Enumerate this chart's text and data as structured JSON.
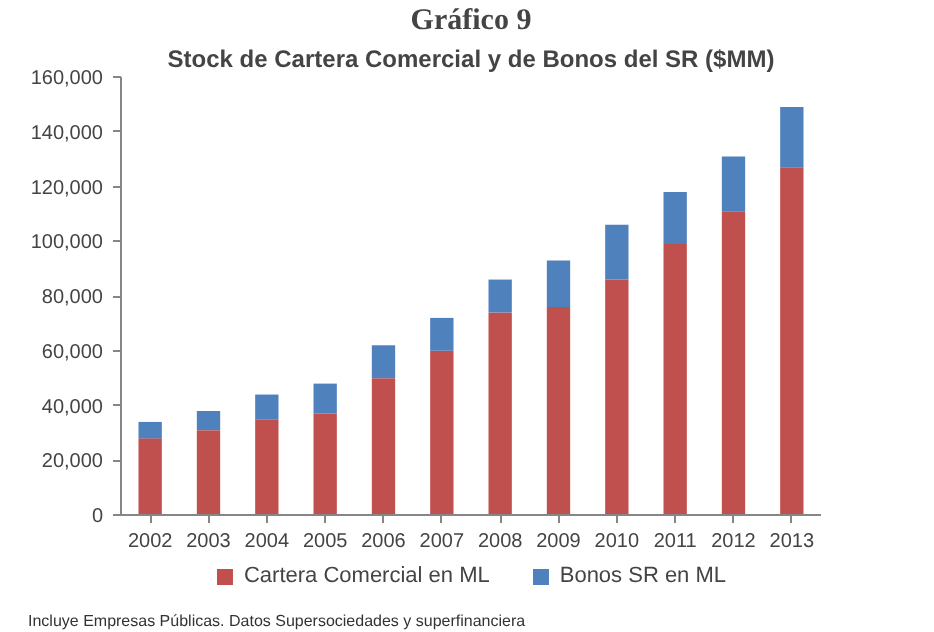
{
  "chart_data": {
    "type": "bar",
    "title": "Gráfico 9",
    "subtitle": "Stock de Cartera Comercial y de Bonos del SR ($MM)",
    "categories": [
      "2002",
      "2003",
      "2004",
      "2005",
      "2006",
      "2007",
      "2008",
      "2009",
      "2010",
      "2011",
      "2012",
      "2013"
    ],
    "stacked": true,
    "series": [
      {
        "name": "Cartera Comercial en ML",
        "color": "#c0504d",
        "values": [
          28000,
          31000,
          35000,
          37000,
          50000,
          60000,
          74000,
          76000,
          86000,
          99000,
          111000,
          127000
        ]
      },
      {
        "name": "Bonos SR en ML",
        "color": "#4f81bd",
        "values": [
          6000,
          7000,
          9000,
          11000,
          12000,
          12000,
          12000,
          17000,
          20000,
          19000,
          20000,
          22000
        ]
      }
    ],
    "ylim": [
      0,
      160000
    ],
    "yticks": [
      {
        "value": 0,
        "label": "0"
      },
      {
        "value": 20000,
        "label": "20,000"
      },
      {
        "value": 40000,
        "label": "40,000"
      },
      {
        "value": 60000,
        "label": "60,000"
      },
      {
        "value": 80000,
        "label": "80,000"
      },
      {
        "value": 100000,
        "label": "100,000"
      },
      {
        "value": 120000,
        "label": "120,000"
      },
      {
        "value": 140000,
        "label": "140,000"
      },
      {
        "value": 160000,
        "label": "160,000"
      }
    ],
    "legend": "bottom",
    "annotations": [
      "Incluye Empresas Públicas. Datos Supersociedades y superfinanciera"
    ]
  }
}
